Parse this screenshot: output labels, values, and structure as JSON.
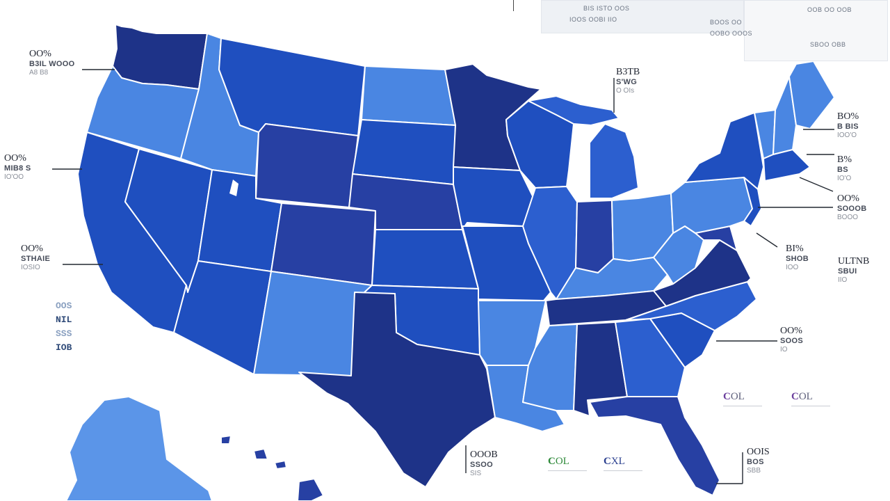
{
  "colors": {
    "dark_navy": "#1e3388",
    "navy": "#2740a3",
    "royal": "#1f4fbf",
    "medium": "#2c5fcf",
    "light": "#4a86e2",
    "lighter": "#5b95e8",
    "background": "#ffffff",
    "leader_line": "#222831"
  },
  "states": [
    {
      "name": "washington",
      "shade": "dark_navy"
    },
    {
      "name": "oregon",
      "shade": "light"
    },
    {
      "name": "california",
      "shade": "royal"
    },
    {
      "name": "nevada",
      "shade": "royal"
    },
    {
      "name": "idaho",
      "shade": "light"
    },
    {
      "name": "montana",
      "shade": "royal"
    },
    {
      "name": "wyoming",
      "shade": "navy"
    },
    {
      "name": "utah",
      "shade": "royal"
    },
    {
      "name": "arizona",
      "shade": "royal"
    },
    {
      "name": "colorado",
      "shade": "navy"
    },
    {
      "name": "new-mexico",
      "shade": "light"
    },
    {
      "name": "north-dakota",
      "shade": "light"
    },
    {
      "name": "south-dakota",
      "shade": "royal"
    },
    {
      "name": "nebraska",
      "shade": "navy"
    },
    {
      "name": "kansas",
      "shade": "royal"
    },
    {
      "name": "oklahoma",
      "shade": "royal"
    },
    {
      "name": "texas",
      "shade": "dark_navy"
    },
    {
      "name": "minnesota",
      "shade": "dark_navy"
    },
    {
      "name": "iowa",
      "shade": "royal"
    },
    {
      "name": "missouri",
      "shade": "royal"
    },
    {
      "name": "arkansas",
      "shade": "light"
    },
    {
      "name": "louisiana",
      "shade": "light"
    },
    {
      "name": "wisconsin",
      "shade": "royal"
    },
    {
      "name": "illinois",
      "shade": "medium"
    },
    {
      "name": "michigan",
      "shade": "medium"
    },
    {
      "name": "indiana",
      "shade": "navy"
    },
    {
      "name": "ohio",
      "shade": "light"
    },
    {
      "name": "kentucky",
      "shade": "light"
    },
    {
      "name": "tennessee",
      "shade": "dark_navy"
    },
    {
      "name": "mississippi",
      "shade": "light"
    },
    {
      "name": "alabama",
      "shade": "dark_navy"
    },
    {
      "name": "georgia",
      "shade": "medium"
    },
    {
      "name": "florida",
      "shade": "navy"
    },
    {
      "name": "south-carolina",
      "shade": "royal"
    },
    {
      "name": "north-carolina",
      "shade": "medium"
    },
    {
      "name": "virginia",
      "shade": "dark_navy"
    },
    {
      "name": "west-virginia",
      "shade": "light"
    },
    {
      "name": "pennsylvania",
      "shade": "light"
    },
    {
      "name": "new-york",
      "shade": "royal"
    },
    {
      "name": "vermont",
      "shade": "light"
    },
    {
      "name": "new-hampshire",
      "shade": "light"
    },
    {
      "name": "maine",
      "shade": "light"
    },
    {
      "name": "massachusetts",
      "shade": "royal"
    },
    {
      "name": "new-jersey",
      "shade": "royal"
    },
    {
      "name": "maryland",
      "shade": "navy"
    },
    {
      "name": "alaska",
      "shade": "lighter"
    },
    {
      "name": "hawaii",
      "shade": "navy"
    }
  ],
  "callouts": [
    {
      "id": "wa",
      "pct": "OO%",
      "line": "B3IL WOOO",
      "sub": "A8 B8"
    },
    {
      "id": "or",
      "pct": "OO%",
      "line": "MIB8 S",
      "sub": "IO'OO"
    },
    {
      "id": "ca",
      "pct": "OO%",
      "line": "STHAIE",
      "sub": "IOSIO"
    },
    {
      "id": "mt",
      "pct": "B3TB",
      "line": "S'WG",
      "sub": "O OIs"
    },
    {
      "id": "me",
      "pct": "BO%",
      "line": "B BIS",
      "sub": "IOO'O"
    },
    {
      "id": "ma",
      "pct": "B%",
      "line": "BS",
      "sub": "IO'O"
    },
    {
      "id": "ny",
      "pct": "OO%",
      "line": "SOOOB",
      "sub": "BOOO"
    },
    {
      "id": "va",
      "pct": "BI%",
      "line": "SHOB",
      "sub": "IOO"
    },
    {
      "id": "de",
      "pct": "ULTNB",
      "line": "SBUI",
      "sub": "IIO"
    },
    {
      "id": "sc",
      "pct": "OO%",
      "line": "SOOS",
      "sub": "IO"
    },
    {
      "id": "tx",
      "pct": "OOOB",
      "line": "SSOO",
      "sub": "SIS"
    },
    {
      "id": "fl",
      "pct": "OOIS",
      "line": "BOS",
      "sub": "SBB"
    }
  ],
  "side_block": {
    "rows": [
      "OOS",
      "NIL",
      "SSS",
      "IOB"
    ]
  },
  "top_panel": {
    "rows": [
      "BIS  ISTO  OOS",
      "IOOS  OOBI  IIO"
    ]
  },
  "top_right_panel": {
    "rows": [
      "OOB  OO  OOB",
      "BOOS  OO",
      "OOBO  OOOS",
      "SBOO  OBB"
    ]
  },
  "badges": [
    {
      "id": "b1",
      "letter": "C",
      "text": "OL",
      "color": "#2f8a3a"
    },
    {
      "id": "b2",
      "letter": "C",
      "text": "XL",
      "color": "#2a3f8f"
    },
    {
      "id": "b3",
      "letter": "C",
      "text": "OL",
      "color": "#6a3e9c"
    },
    {
      "id": "b4",
      "letter": "C",
      "text": "OL",
      "color": "#6a3e9c"
    }
  ]
}
